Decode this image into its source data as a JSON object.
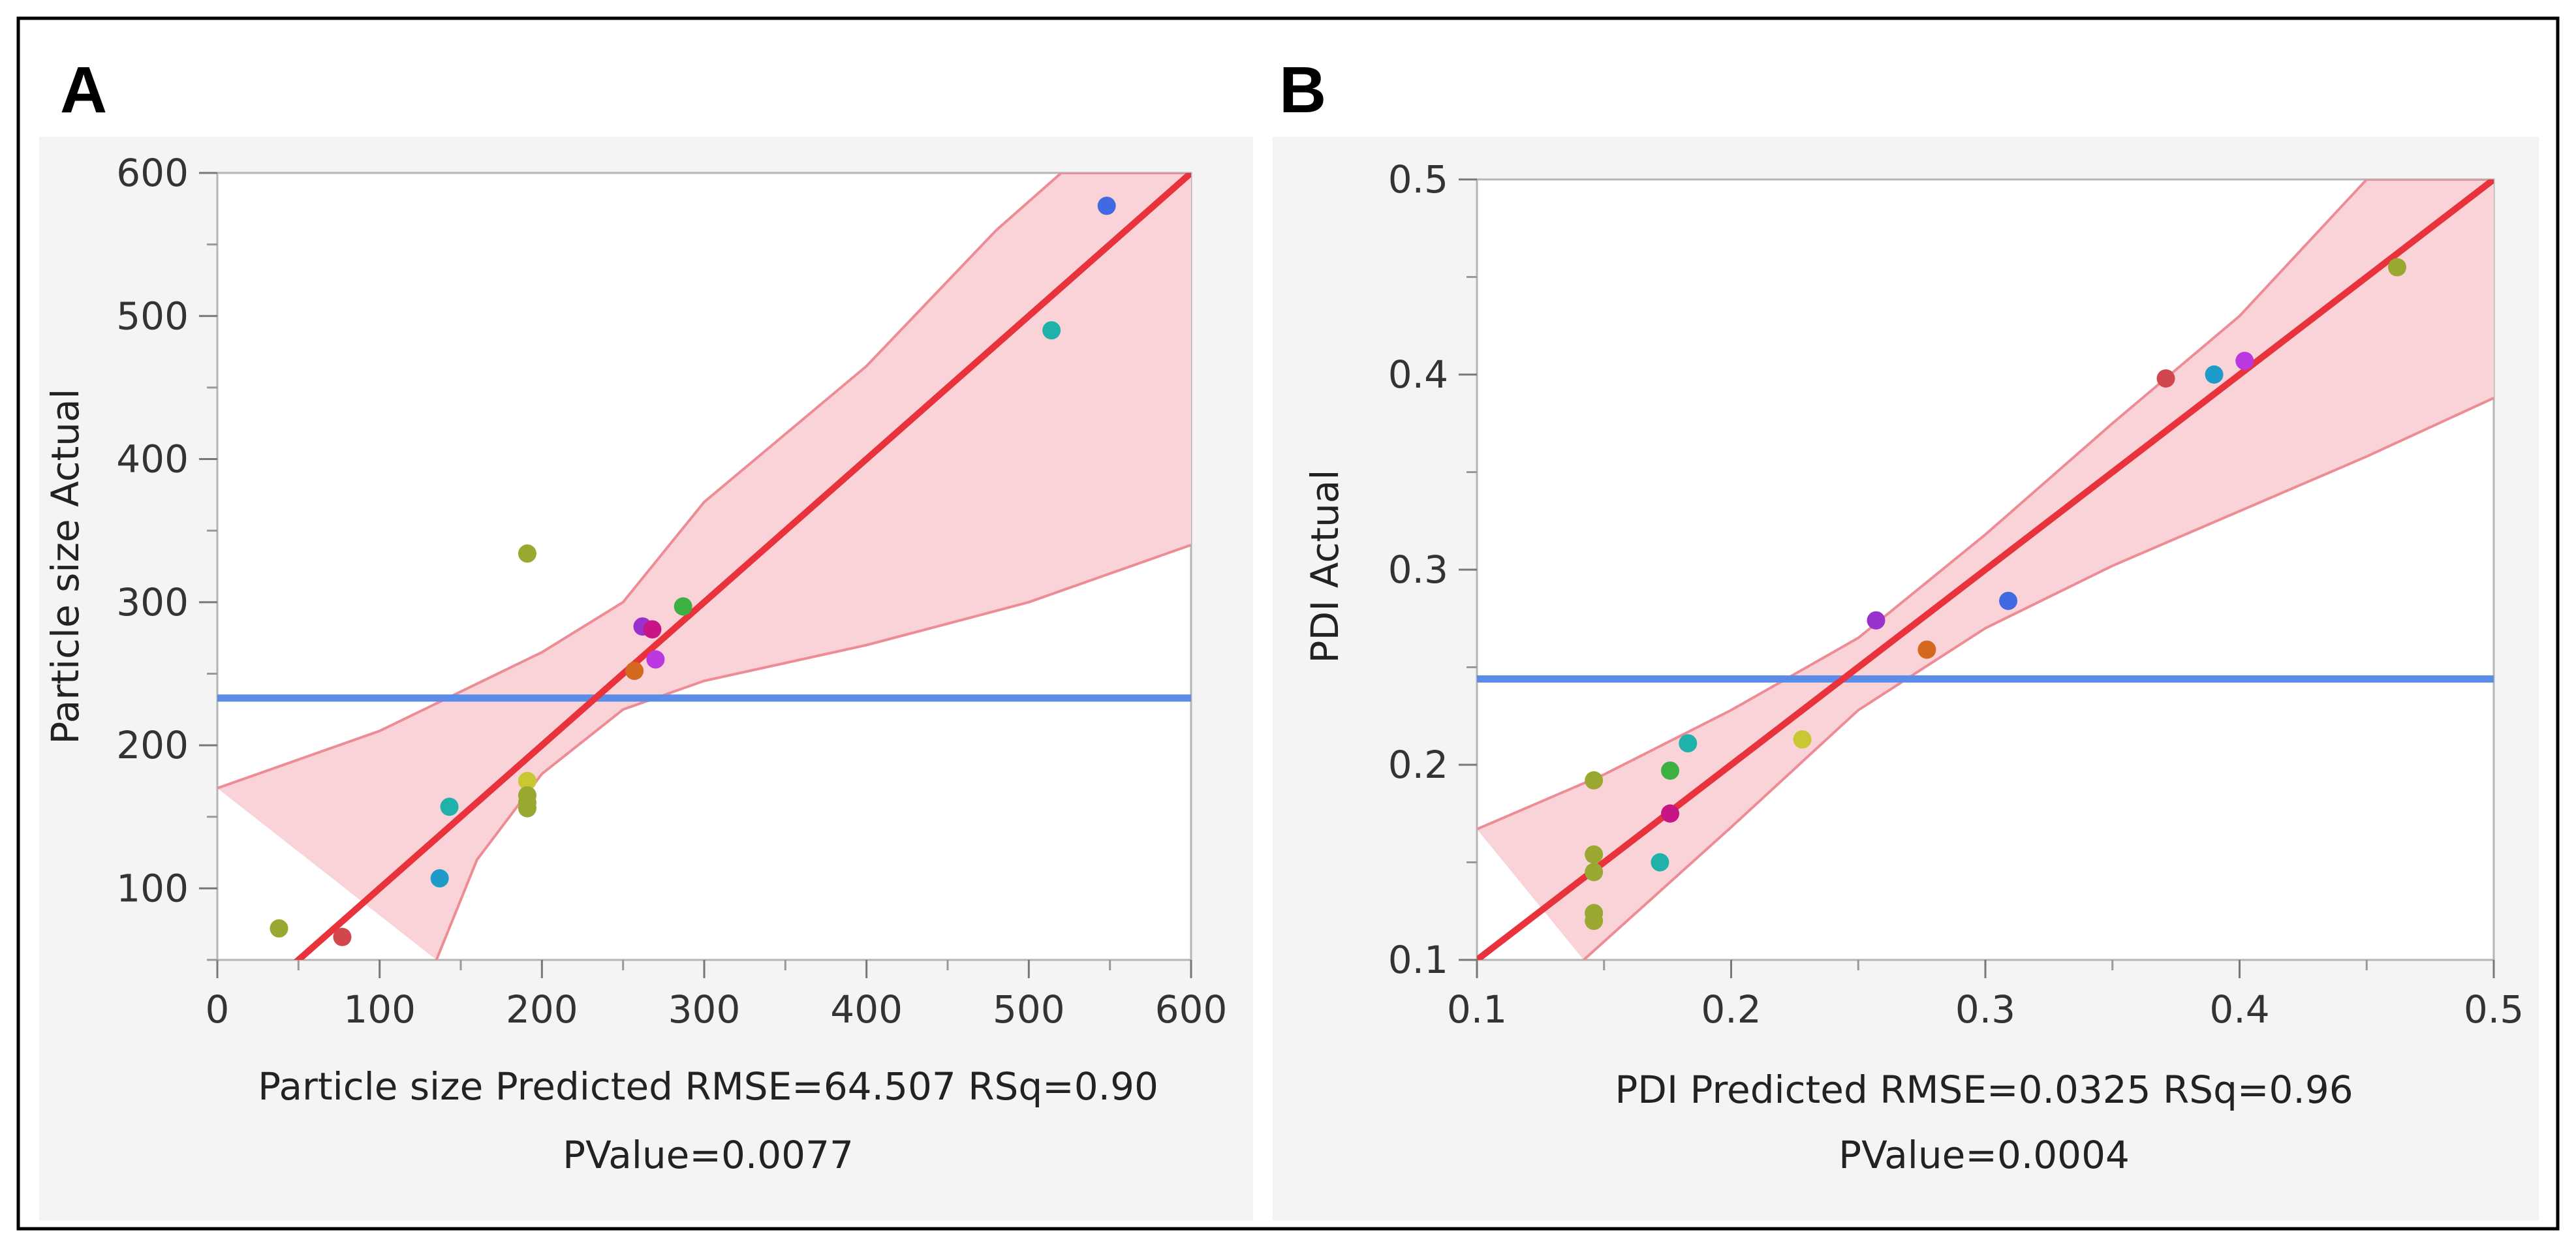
{
  "chart_data": [
    {
      "type": "scatter",
      "panel_label": "A",
      "xlabel": "Particle size Predicted RMSE=64.507 RSq=0.90",
      "xlabel_line2": "PValue=0.0077",
      "ylabel": "Particle size Actual",
      "xlim": [
        0,
        600
      ],
      "ylim": [
        50,
        600
      ],
      "x_ticks": [
        "0",
        "100",
        "200",
        "300",
        "400",
        "500",
        "600"
      ],
      "y_ticks": [
        "100",
        "200",
        "300",
        "400",
        "500",
        "600"
      ],
      "mean_line_y": 233,
      "fit_line": [
        [
          0,
          0
        ],
        [
          600,
          600
        ]
      ],
      "confidence_upper": [
        [
          0,
          170
        ],
        [
          100,
          210
        ],
        [
          200,
          265
        ],
        [
          250,
          300
        ],
        [
          300,
          370
        ],
        [
          400,
          465
        ],
        [
          480,
          560
        ],
        [
          520,
          600
        ],
        [
          600,
          600
        ]
      ],
      "confidence_lower": [
        [
          135,
          50
        ],
        [
          160,
          120
        ],
        [
          200,
          180
        ],
        [
          250,
          225
        ],
        [
          300,
          245
        ],
        [
          400,
          270
        ],
        [
          500,
          300
        ],
        [
          600,
          340
        ]
      ],
      "points": [
        {
          "x": 548,
          "y": 577,
          "color": "#4169E1"
        },
        {
          "x": 514,
          "y": 490,
          "color": "#20B2AA"
        },
        {
          "x": 191,
          "y": 334,
          "color": "#9AA832"
        },
        {
          "x": 287,
          "y": 297,
          "color": "#3CB043"
        },
        {
          "x": 262,
          "y": 283,
          "color": "#9932CC"
        },
        {
          "x": 268,
          "y": 281,
          "color": "#C71585"
        },
        {
          "x": 270,
          "y": 260,
          "color": "#BA38E0"
        },
        {
          "x": 257,
          "y": 252,
          "color": "#D2691E"
        },
        {
          "x": 191,
          "y": 175,
          "color": "#C8C832"
        },
        {
          "x": 191,
          "y": 165,
          "color": "#9AA832"
        },
        {
          "x": 191,
          "y": 160,
          "color": "#9AA832"
        },
        {
          "x": 191,
          "y": 156,
          "color": "#9AA832"
        },
        {
          "x": 143,
          "y": 157,
          "color": "#20B2AA"
        },
        {
          "x": 137,
          "y": 107,
          "color": "#1E9BC8"
        },
        {
          "x": 38,
          "y": 72,
          "color": "#9AA832"
        },
        {
          "x": 77,
          "y": 66,
          "color": "#D2464E"
        }
      ]
    },
    {
      "type": "scatter",
      "panel_label": "B",
      "xlabel": "PDI Predicted RMSE=0.0325 RSq=0.96",
      "xlabel_line2": "PValue=0.0004",
      "ylabel": "PDI Actual",
      "xlim": [
        0.1,
        0.5
      ],
      "ylim": [
        0.1,
        0.5
      ],
      "x_ticks": [
        "0.1",
        "0.2",
        "0.3",
        "0.4",
        "0.5"
      ],
      "y_ticks": [
        "0.1",
        "0.2",
        "0.3",
        "0.4",
        "0.5"
      ],
      "mean_line_y": 0.244,
      "fit_line": [
        [
          0.1,
          0.1
        ],
        [
          0.5,
          0.5
        ]
      ],
      "confidence_upper": [
        [
          0.1,
          0.167
        ],
        [
          0.15,
          0.195
        ],
        [
          0.2,
          0.228
        ],
        [
          0.25,
          0.265
        ],
        [
          0.3,
          0.318
        ],
        [
          0.35,
          0.375
        ],
        [
          0.4,
          0.43
        ],
        [
          0.45,
          0.5
        ],
        [
          0.5,
          0.5
        ]
      ],
      "confidence_lower": [
        [
          0.142,
          0.1
        ],
        [
          0.2,
          0.168
        ],
        [
          0.25,
          0.228
        ],
        [
          0.3,
          0.27
        ],
        [
          0.35,
          0.302
        ],
        [
          0.4,
          0.33
        ],
        [
          0.45,
          0.358
        ],
        [
          0.5,
          0.388
        ]
      ],
      "points": [
        {
          "x": 0.462,
          "y": 0.455,
          "color": "#9AA832"
        },
        {
          "x": 0.402,
          "y": 0.407,
          "color": "#BA38E0"
        },
        {
          "x": 0.39,
          "y": 0.4,
          "color": "#1E9BC8"
        },
        {
          "x": 0.371,
          "y": 0.398,
          "color": "#D2464E"
        },
        {
          "x": 0.309,
          "y": 0.284,
          "color": "#4169E1"
        },
        {
          "x": 0.257,
          "y": 0.274,
          "color": "#9932CC"
        },
        {
          "x": 0.277,
          "y": 0.259,
          "color": "#D2691E"
        },
        {
          "x": 0.228,
          "y": 0.213,
          "color": "#C8C832"
        },
        {
          "x": 0.183,
          "y": 0.211,
          "color": "#20B2AA"
        },
        {
          "x": 0.176,
          "y": 0.197,
          "color": "#3CB043"
        },
        {
          "x": 0.146,
          "y": 0.192,
          "color": "#9AA832"
        },
        {
          "x": 0.176,
          "y": 0.175,
          "color": "#C71585"
        },
        {
          "x": 0.146,
          "y": 0.154,
          "color": "#9AA832"
        },
        {
          "x": 0.146,
          "y": 0.145,
          "color": "#9AA832"
        },
        {
          "x": 0.172,
          "y": 0.15,
          "color": "#20B2AA"
        },
        {
          "x": 0.146,
          "y": 0.124,
          "color": "#9AA832"
        },
        {
          "x": 0.146,
          "y": 0.12,
          "color": "#9AA832"
        }
      ]
    }
  ],
  "colors": {
    "fit_line": "#E8323C",
    "mean_line": "#5B8CE8",
    "band_fill": "#F9D3D8",
    "band_edge": "#EE8C95"
  }
}
